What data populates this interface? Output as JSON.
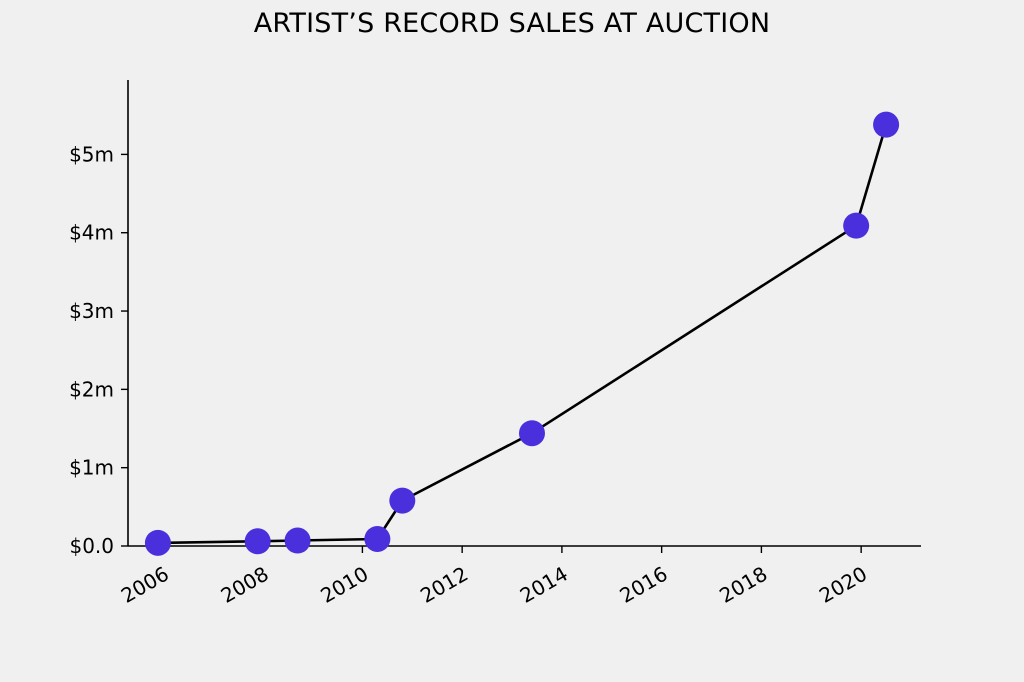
{
  "chart_data": {
    "type": "line",
    "title": "ARTIST’S RECORD SALES AT AUCTION",
    "xlabel": "",
    "ylabel": "",
    "x_tick_labels": [
      "2006",
      "2008",
      "2010",
      "2012",
      "2014",
      "2016",
      "2018",
      "2020"
    ],
    "x_tick_values": [
      2006,
      2008,
      2010,
      2012,
      2014,
      2016,
      2018,
      2020
    ],
    "y_tick_labels": [
      "$0.0",
      "$1m",
      "$2m",
      "$3m",
      "$4m",
      "$5m"
    ],
    "y_tick_values": [
      0,
      1,
      2,
      3,
      4,
      5
    ],
    "xlim": [
      2005.3,
      2021.2
    ],
    "ylim": [
      0,
      5.95
    ],
    "y_units": "$ millions",
    "grid": false,
    "legend": "none",
    "series": [
      {
        "points": [
          {
            "x": 2005.9,
            "y": 0.04
          },
          {
            "x": 2007.9,
            "y": 0.06
          },
          {
            "x": 2008.7,
            "y": 0.07
          },
          {
            "x": 2010.3,
            "y": 0.09
          },
          {
            "x": 2010.8,
            "y": 0.58
          },
          {
            "x": 2013.4,
            "y": 1.44
          },
          {
            "x": 2019.9,
            "y": 4.09
          },
          {
            "x": 2020.5,
            "y": 5.38
          }
        ]
      }
    ],
    "colors": {
      "marker": "#4a2fdc",
      "line": "#000000",
      "background": "#f0f0f0"
    }
  }
}
